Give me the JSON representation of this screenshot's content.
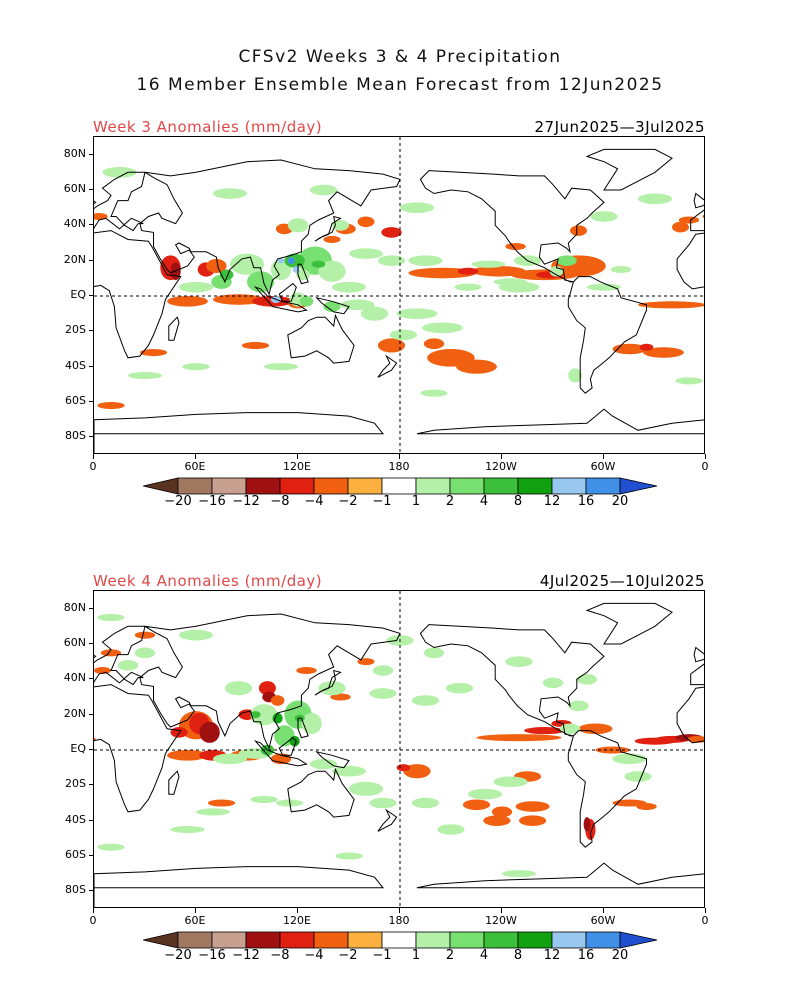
{
  "title_line1": "CFSv2 Weeks 3 & 4 Precipitation",
  "title_line2": "16 Member Ensemble Mean Forecast from 12Jun2025",
  "panels": [
    {
      "label": "Week 3 Anomalies (mm/day)",
      "dates": "27Jun2025—3Jul2025"
    },
    {
      "label": "Week 4 Anomalies (mm/day)",
      "dates": "4Jul2025—10Jul2025"
    }
  ],
  "lat_ticks": [
    "80N",
    "60N",
    "40N",
    "20N",
    "EQ",
    "20S",
    "40S",
    "60S",
    "80S"
  ],
  "lon_ticks": [
    "0",
    "60E",
    "120E",
    "180",
    "120W",
    "60W",
    "0"
  ],
  "colorbar": {
    "labels": [
      "−20",
      "−16",
      "−12",
      "−8",
      "−4",
      "−2",
      "−1",
      "1",
      "2",
      "4",
      "8",
      "12",
      "16",
      "20"
    ],
    "colors": [
      "#5a3220",
      "#a07860",
      "#c8a090",
      "#a01010",
      "#e02010",
      "#f06010",
      "#fbb040",
      "#ffffff",
      "#b4f0a8",
      "#78e070",
      "#3cc03c",
      "#10a010",
      "#98c8f0",
      "#4090e8",
      "#2050d0"
    ]
  },
  "colors": {
    "title_red": "#e04848",
    "dry": "#fbb040",
    "wet": "#78e070"
  }
}
